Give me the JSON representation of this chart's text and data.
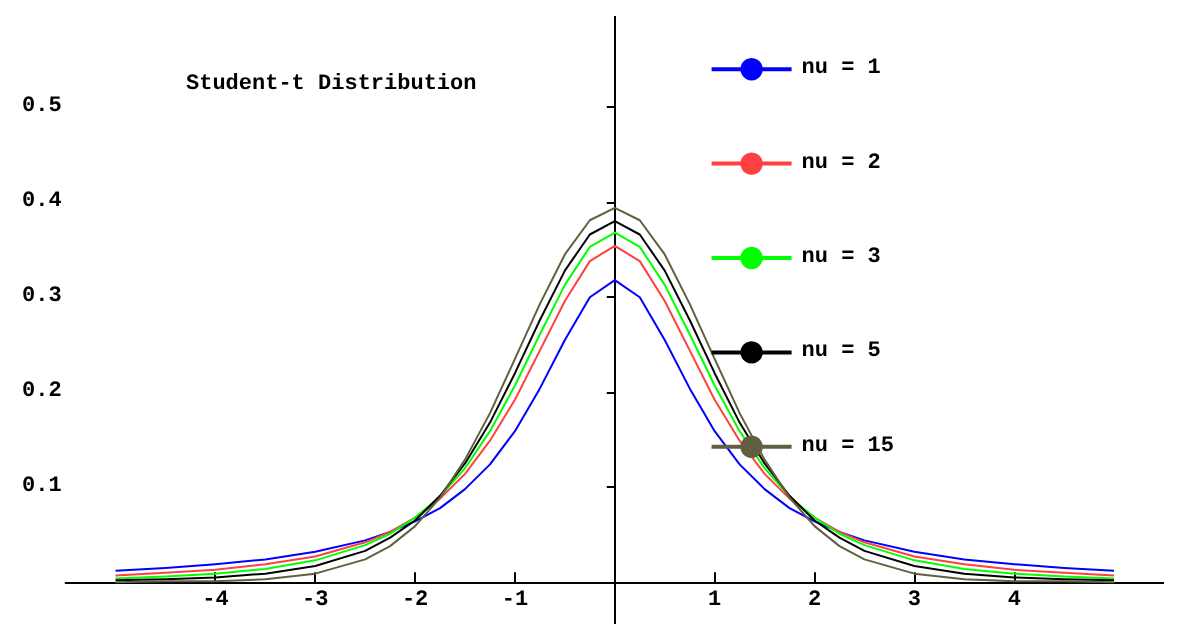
{
  "chart_data": {
    "type": "line",
    "title": "Student-t Distribution",
    "x": [
      -5,
      -4.5,
      -4,
      -3.5,
      -3,
      -2.5,
      -2.25,
      -2,
      -1.75,
      -1.5,
      -1.25,
      -1,
      -0.75,
      -0.5,
      -0.25,
      0,
      0.25,
      0.5,
      0.75,
      1,
      1.25,
      1.5,
      1.75,
      2,
      2.25,
      2.5,
      3,
      3.5,
      4,
      4.5,
      5
    ],
    "series": [
      {
        "name": "nu = 1",
        "color": "#0000ff",
        "values": [
          0.012,
          0.015,
          0.019,
          0.024,
          0.032,
          0.044,
          0.053,
          0.064,
          0.078,
          0.098,
          0.124,
          0.159,
          0.204,
          0.255,
          0.3,
          0.318,
          0.3,
          0.255,
          0.204,
          0.159,
          0.124,
          0.098,
          0.078,
          0.064,
          0.053,
          0.044,
          0.032,
          0.024,
          0.019,
          0.015,
          0.012
        ]
      },
      {
        "name": "nu = 2",
        "color": "#ff4040",
        "values": [
          0.007,
          0.01,
          0.013,
          0.019,
          0.027,
          0.042,
          0.053,
          0.068,
          0.088,
          0.114,
          0.149,
          0.192,
          0.244,
          0.296,
          0.338,
          0.354,
          0.338,
          0.296,
          0.244,
          0.192,
          0.149,
          0.114,
          0.088,
          0.068,
          0.053,
          0.042,
          0.027,
          0.019,
          0.013,
          0.01,
          0.007
        ]
      },
      {
        "name": "nu = 3",
        "color": "#00ff00",
        "values": [
          0.004,
          0.006,
          0.009,
          0.014,
          0.023,
          0.039,
          0.051,
          0.068,
          0.09,
          0.12,
          0.159,
          0.207,
          0.261,
          0.313,
          0.353,
          0.368,
          0.353,
          0.313,
          0.261,
          0.207,
          0.159,
          0.12,
          0.09,
          0.068,
          0.051,
          0.039,
          0.023,
          0.014,
          0.009,
          0.006,
          0.004
        ]
      },
      {
        "name": "nu = 5",
        "color": "#000000",
        "values": [
          0.002,
          0.003,
          0.005,
          0.009,
          0.017,
          0.033,
          0.047,
          0.065,
          0.091,
          0.125,
          0.168,
          0.22,
          0.276,
          0.328,
          0.366,
          0.38,
          0.366,
          0.328,
          0.276,
          0.22,
          0.168,
          0.125,
          0.091,
          0.065,
          0.047,
          0.033,
          0.017,
          0.009,
          0.005,
          0.003,
          0.002
        ]
      },
      {
        "name": "nu = 15",
        "color": "#606040",
        "values": [
          0,
          0.001,
          0.001,
          0.003,
          0.009,
          0.024,
          0.038,
          0.059,
          0.089,
          0.129,
          0.178,
          0.235,
          0.293,
          0.345,
          0.381,
          0.394,
          0.381,
          0.345,
          0.293,
          0.235,
          0.178,
          0.129,
          0.089,
          0.059,
          0.038,
          0.024,
          0.009,
          0.003,
          0.001,
          0.001,
          0
        ]
      }
    ],
    "xlim": [
      -5.5,
      5.5
    ],
    "ylim": [
      -0.044,
      0.596
    ],
    "xticks": [
      -4,
      -3,
      -2,
      -1,
      1,
      2,
      3,
      4
    ],
    "yticks": [
      0.1,
      0.2,
      0.3,
      0.4,
      0.5
    ],
    "grid": false,
    "legend": "top right",
    "marker": "none",
    "line_style": "solid"
  }
}
